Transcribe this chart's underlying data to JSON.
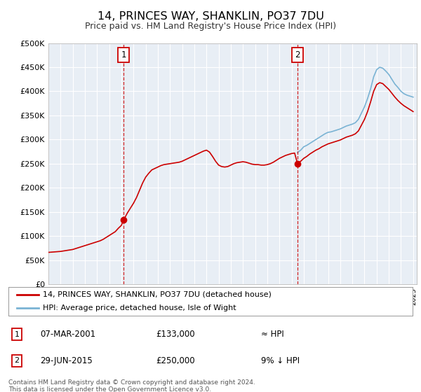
{
  "title": "14, PRINCES WAY, SHANKLIN, PO37 7DU",
  "subtitle": "Price paid vs. HM Land Registry's House Price Index (HPI)",
  "outer_bg_color": "#ffffff",
  "plot_bg_color": "#e8eef5",
  "sale1_date": 2001.18,
  "sale1_price": 133000,
  "sale1_label": "1",
  "sale2_date": 2015.49,
  "sale2_price": 250000,
  "sale2_label": "2",
  "hpi_color": "#7ab3d4",
  "price_color": "#cc0000",
  "dashed_color": "#cc0000",
  "ylim_min": 0,
  "ylim_max": 500000,
  "ytick_step": 50000,
  "xmin": 1995.0,
  "xmax": 2025.3,
  "legend_line1": "14, PRINCES WAY, SHANKLIN, PO37 7DU (detached house)",
  "legend_line2": "HPI: Average price, detached house, Isle of Wight",
  "table_row1_num": "1",
  "table_row1_date": "07-MAR-2001",
  "table_row1_price": "£133,000",
  "table_row1_hpi": "≈ HPI",
  "table_row2_num": "2",
  "table_row2_date": "29-JUN-2015",
  "table_row2_price": "£250,000",
  "table_row2_hpi": "9% ↓ HPI",
  "footer": "Contains HM Land Registry data © Crown copyright and database right 2024.\nThis data is licensed under the Open Government Licence v3.0.",
  "hpi_years": [
    2015.49,
    2015.75,
    2016.0,
    2016.25,
    2016.5,
    2016.75,
    2017.0,
    2017.25,
    2017.5,
    2017.75,
    2018.0,
    2018.25,
    2018.5,
    2018.75,
    2019.0,
    2019.25,
    2019.5,
    2019.75,
    2020.0,
    2020.25,
    2020.5,
    2020.75,
    2021.0,
    2021.25,
    2021.5,
    2021.75,
    2022.0,
    2022.25,
    2022.5,
    2022.75,
    2023.0,
    2023.25,
    2023.5,
    2023.75,
    2024.0,
    2024.25,
    2024.5,
    2024.75,
    2025.0
  ],
  "hpi_values": [
    273000,
    278000,
    285000,
    288000,
    292000,
    296000,
    300000,
    304000,
    308000,
    312000,
    315000,
    316000,
    318000,
    320000,
    322000,
    325000,
    328000,
    330000,
    332000,
    335000,
    342000,
    355000,
    368000,
    385000,
    405000,
    430000,
    445000,
    450000,
    448000,
    442000,
    435000,
    425000,
    415000,
    408000,
    400000,
    395000,
    392000,
    390000,
    388000
  ],
  "price_years": [
    1995.0,
    1995.25,
    1995.5,
    1995.75,
    1996.0,
    1996.25,
    1996.5,
    1996.75,
    1997.0,
    1997.25,
    1997.5,
    1997.75,
    1998.0,
    1998.25,
    1998.5,
    1998.75,
    1999.0,
    1999.25,
    1999.5,
    1999.75,
    2000.0,
    2000.25,
    2000.5,
    2000.75,
    2001.0,
    2001.18,
    2001.5,
    2001.75,
    2002.0,
    2002.25,
    2002.5,
    2002.75,
    2003.0,
    2003.25,
    2003.5,
    2003.75,
    2004.0,
    2004.25,
    2004.5,
    2004.75,
    2005.0,
    2005.25,
    2005.5,
    2005.75,
    2006.0,
    2006.25,
    2006.5,
    2006.75,
    2007.0,
    2007.25,
    2007.5,
    2007.75,
    2008.0,
    2008.25,
    2008.5,
    2008.75,
    2009.0,
    2009.25,
    2009.5,
    2009.75,
    2010.0,
    2010.25,
    2010.5,
    2010.75,
    2011.0,
    2011.25,
    2011.5,
    2011.75,
    2012.0,
    2012.25,
    2012.5,
    2012.75,
    2013.0,
    2013.25,
    2013.5,
    2013.75,
    2014.0,
    2014.25,
    2014.5,
    2014.75,
    2015.0,
    2015.25,
    2015.49,
    2015.49,
    2015.75,
    2016.0,
    2016.25,
    2016.5,
    2016.75,
    2017.0,
    2017.25,
    2017.5,
    2017.75,
    2018.0,
    2018.25,
    2018.5,
    2018.75,
    2019.0,
    2019.25,
    2019.5,
    2019.75,
    2020.0,
    2020.25,
    2020.5,
    2020.75,
    2021.0,
    2021.25,
    2021.5,
    2021.75,
    2022.0,
    2022.25,
    2022.5,
    2022.75,
    2023.0,
    2023.25,
    2023.5,
    2023.75,
    2024.0,
    2024.25,
    2024.5,
    2024.75,
    2025.0
  ],
  "price_values": [
    66000,
    66500,
    67000,
    67500,
    68000,
    69000,
    70000,
    71000,
    72000,
    74000,
    76000,
    78000,
    80000,
    82000,
    84000,
    86000,
    88000,
    90000,
    93000,
    97000,
    101000,
    105000,
    109000,
    116000,
    122000,
    133000,
    148000,
    158000,
    168000,
    180000,
    195000,
    210000,
    222000,
    230000,
    237000,
    240000,
    243000,
    246000,
    248000,
    249000,
    250000,
    251000,
    252000,
    253000,
    255000,
    258000,
    261000,
    264000,
    267000,
    270000,
    273000,
    276000,
    278000,
    274000,
    265000,
    255000,
    247000,
    244000,
    243000,
    244000,
    247000,
    250000,
    252000,
    253000,
    254000,
    253000,
    251000,
    249000,
    248000,
    248000,
    247000,
    247000,
    248000,
    250000,
    253000,
    257000,
    261000,
    264000,
    267000,
    269000,
    271000,
    272000,
    250000,
    250000,
    255000,
    261000,
    265000,
    270000,
    274000,
    278000,
    281000,
    285000,
    288000,
    291000,
    293000,
    295000,
    297000,
    299000,
    302000,
    305000,
    307000,
    309000,
    312000,
    318000,
    330000,
    342000,
    358000,
    378000,
    400000,
    414000,
    418000,
    416000,
    410000,
    404000,
    396000,
    388000,
    381000,
    375000,
    370000,
    366000,
    362000,
    358000
  ]
}
